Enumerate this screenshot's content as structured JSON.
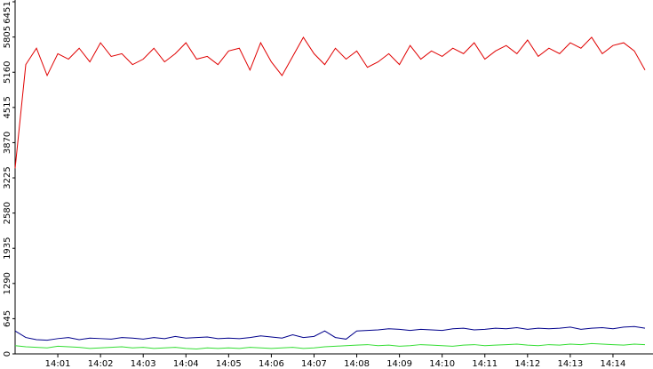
{
  "chart_data": {
    "type": "line",
    "categories": [
      null,
      null,
      null,
      null,
      "14:01",
      null,
      null,
      null,
      "14:02",
      null,
      null,
      null,
      "14:03",
      null,
      null,
      null,
      "14:04",
      null,
      null,
      null,
      "14:05",
      null,
      null,
      null,
      "14:06",
      null,
      null,
      null,
      "14:07",
      null,
      null,
      null,
      "14:08",
      null,
      null,
      null,
      "14:09",
      null,
      null,
      null,
      "14:10",
      null,
      null,
      null,
      "14:11",
      null,
      null,
      null,
      "14:12",
      null,
      null,
      null,
      "14:13",
      null,
      null,
      null,
      "14:14",
      null,
      null,
      null
    ],
    "series": [
      {
        "color": "#e00000",
        "values": [
          3400,
          5300,
          5600,
          5100,
          5500,
          5400,
          5600,
          5350,
          5700,
          5450,
          5500,
          5300,
          5400,
          5600,
          5350,
          5500,
          5700,
          5400,
          5450,
          5300,
          5550,
          5600,
          5200,
          5700,
          5350,
          5100,
          5450,
          5800,
          5500,
          5300,
          5600,
          5400,
          5550,
          5250,
          5350,
          5500,
          5300,
          5650,
          5400,
          5550,
          5450,
          5600,
          5500,
          5700,
          5400,
          5550,
          5650,
          5500,
          5750,
          5450,
          5600,
          5500,
          5700,
          5600,
          5800,
          5500,
          5650,
          5700,
          5550,
          5200
        ]
      },
      {
        "color": "#00008b",
        "values": [
          420,
          300,
          260,
          250,
          280,
          300,
          260,
          290,
          280,
          270,
          300,
          290,
          270,
          300,
          280,
          320,
          290,
          300,
          310,
          280,
          290,
          280,
          300,
          330,
          310,
          290,
          350,
          300,
          320,
          420,
          300,
          270,
          420,
          430,
          440,
          460,
          450,
          430,
          450,
          440,
          430,
          460,
          470,
          440,
          450,
          470,
          460,
          480,
          450,
          470,
          460,
          470,
          490,
          450,
          470,
          480,
          460,
          490,
          500,
          470
        ]
      },
      {
        "color": "#33dd33",
        "values": [
          150,
          130,
          120,
          110,
          140,
          130,
          120,
          100,
          110,
          120,
          130,
          110,
          120,
          100,
          110,
          120,
          100,
          90,
          110,
          100,
          110,
          100,
          120,
          110,
          100,
          110,
          120,
          100,
          110,
          130,
          140,
          150,
          160,
          170,
          150,
          160,
          140,
          150,
          170,
          160,
          150,
          140,
          160,
          170,
          150,
          160,
          170,
          180,
          160,
          150,
          170,
          160,
          180,
          170,
          190,
          180,
          170,
          160,
          180,
          170
        ]
      }
    ],
    "ylim": [
      0,
      6451
    ],
    "yticks": [
      0,
      645,
      1290,
      1935,
      2580,
      3225,
      3870,
      4515,
      5160,
      5805,
      6451
    ]
  }
}
